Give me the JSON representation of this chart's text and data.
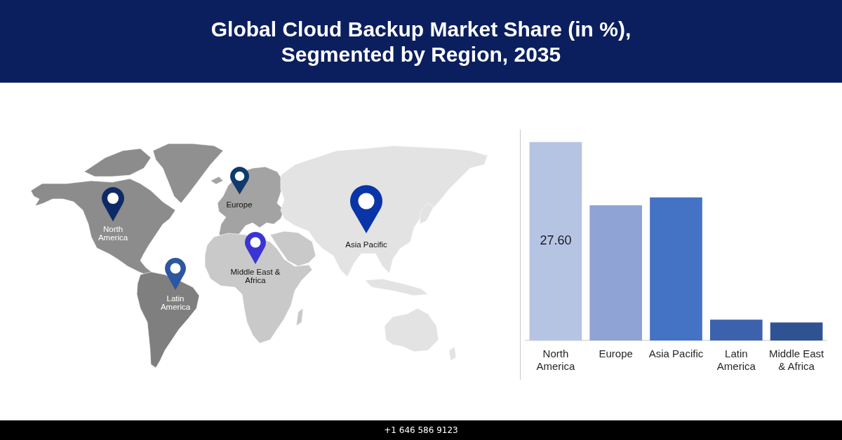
{
  "chart_data": {
    "type": "bar",
    "title": "Global Cloud Backup Market Share (in %), Segmented by Region, 2035",
    "categories": [
      "North America",
      "Europe",
      "Asia Pacific",
      "Latin America",
      "Middle East & Africa"
    ],
    "values": [
      27.6,
      18.8,
      19.9,
      2.9,
      2.5
    ],
    "colors": [
      "#b6c4e4",
      "#8fa3d5",
      "#4472c4",
      "#3c62ad",
      "#2f5392"
    ],
    "value_labels": [
      "27.60",
      null,
      null,
      null,
      null
    ],
    "tick_labels": "x",
    "annotations": [
      "+1 646 586 9123"
    ]
  }
}
